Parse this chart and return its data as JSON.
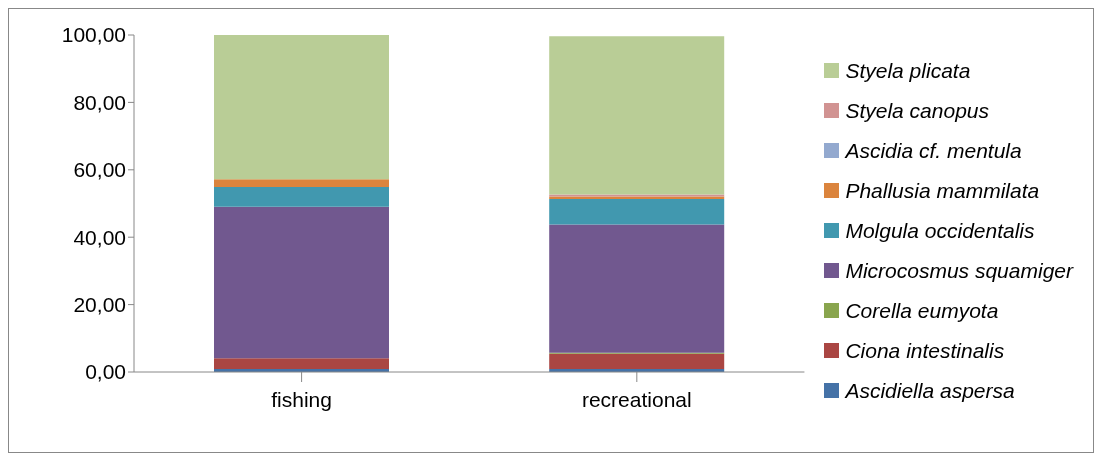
{
  "chart_data": {
    "type": "bar",
    "stacked": true,
    "categories": [
      "fishing",
      "recreational"
    ],
    "series": [
      {
        "name": "Ascidiella aspersa",
        "color": "#4572a7",
        "values": [
          0.9,
          0.9
        ]
      },
      {
        "name": "Ciona intestinalis",
        "color": "#aa4643",
        "values": [
          3.2,
          4.5
        ]
      },
      {
        "name": "Corella eumyota",
        "color": "#89a54e",
        "values": [
          0,
          0.3
        ]
      },
      {
        "name": "Microcosmus squamiger",
        "color": "#71588f",
        "values": [
          44.9,
          38.1
        ]
      },
      {
        "name": "Molgula occidentalis",
        "color": "#4198af",
        "values": [
          5.9,
          7.5
        ]
      },
      {
        "name": "Phallusia mammilata",
        "color": "#db843d",
        "values": [
          2.3,
          0.8
        ]
      },
      {
        "name": "Ascidia cf.  mentula",
        "color": "#93a9cf",
        "values": [
          0,
          0
        ]
      },
      {
        "name": "Styela canopus",
        "color": "#d19392",
        "values": [
          0,
          0.6
        ]
      },
      {
        "name": "Styela plicata",
        "color": "#b9cd96",
        "values": [
          42.8,
          46.9
        ]
      }
    ],
    "ylim": [
      0,
      100
    ],
    "yticks": [
      {
        "value": 0,
        "label": "0,00"
      },
      {
        "value": 20,
        "label": "20,00"
      },
      {
        "value": 40,
        "label": "40,00"
      },
      {
        "value": 60,
        "label": "60,00"
      },
      {
        "value": 80,
        "label": "80,00"
      },
      {
        "value": 100,
        "label": "100,00"
      }
    ],
    "grid": false,
    "legend": "right"
  }
}
